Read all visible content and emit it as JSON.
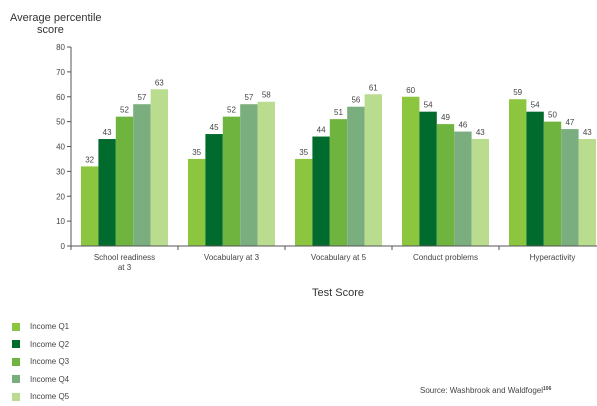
{
  "chart_data": {
    "type": "bar",
    "title": "",
    "ylabel": [
      "Average percentile",
      "score"
    ],
    "xlabel": "Test Score",
    "ylim": [
      0,
      80
    ],
    "yticks": [
      0,
      10,
      20,
      30,
      40,
      50,
      60,
      70,
      80
    ],
    "categories": [
      [
        "School readiness",
        "at 3"
      ],
      [
        "Vocabulary at 3"
      ],
      [
        "Vocabulary at 5"
      ],
      [
        "Conduct problems"
      ],
      [
        "Hyperactivity"
      ]
    ],
    "series": [
      {
        "name": "Income Q1",
        "color": "#8cc63f",
        "values": [
          32,
          35,
          35,
          60,
          59
        ]
      },
      {
        "name": "Income Q2",
        "color": "#006b2d",
        "values": [
          43,
          45,
          44,
          54,
          54
        ]
      },
      {
        "name": "Income Q3",
        "color": "#6fb43f",
        "values": [
          52,
          52,
          51,
          49,
          50
        ]
      },
      {
        "name": "Income Q4",
        "color": "#7bae7e",
        "values": [
          57,
          57,
          56,
          46,
          47
        ]
      },
      {
        "name": "Income Q5",
        "color": "#b9dc8f",
        "values": [
          63,
          58,
          61,
          43,
          43
        ]
      }
    ],
    "legend_position": "bottom-left",
    "grid": false,
    "source": {
      "text": "Source: Washbrook and Waldfogel",
      "ref": "106"
    }
  }
}
